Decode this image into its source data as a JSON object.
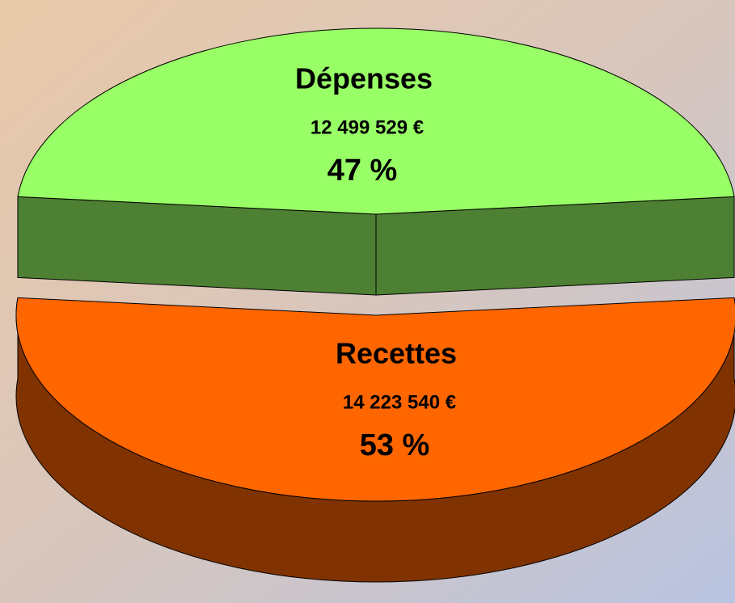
{
  "chart_data": {
    "type": "pie3d",
    "categories": [
      "Dépenses",
      "Recettes"
    ],
    "values": [
      47,
      53
    ],
    "value_labels": [
      "47 %",
      "53 %"
    ],
    "amount_labels": [
      "12 499 529 €",
      "14 223 540 €"
    ],
    "colors": [
      "#99ff66",
      "#ff6600"
    ],
    "exploded": [
      true,
      false
    ]
  }
}
